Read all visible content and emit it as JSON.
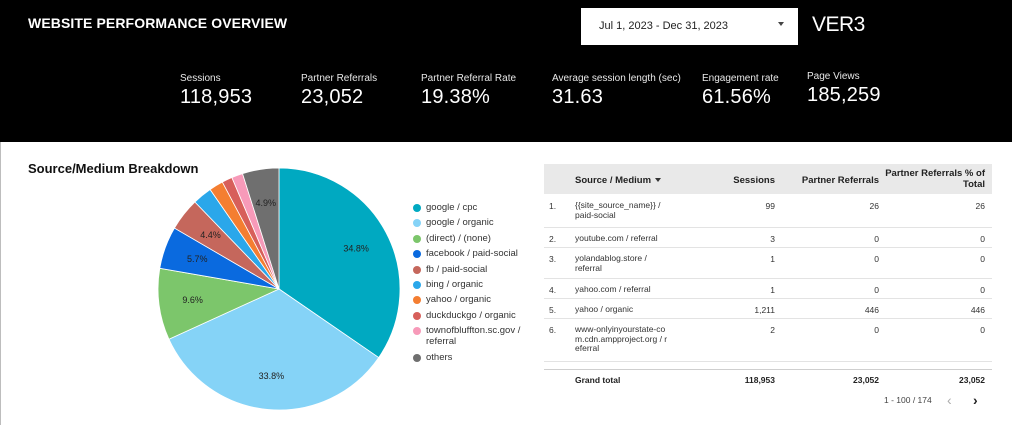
{
  "header": {
    "title": "WEBSITE PERFORMANCE OVERVIEW",
    "date_range": "Jul 1, 2023 - Dec 31, 2023",
    "logo": "VER3"
  },
  "kpis": [
    {
      "label": "Sessions",
      "value": "118,953"
    },
    {
      "label": "Partner Referrals",
      "value": "23,052"
    },
    {
      "label": "Partner Referral Rate",
      "value": "19.38%"
    },
    {
      "label": "Average session length (sec)",
      "value": "31.63"
    },
    {
      "label": "Engagement rate",
      "value": "61.56%"
    },
    {
      "label": "Page Views",
      "value": "185,259"
    }
  ],
  "breakdown": {
    "title": "Source/Medium Breakdown"
  },
  "chart_data": {
    "type": "pie",
    "title": "Source/Medium Breakdown",
    "slices": [
      {
        "name": "google / cpc",
        "value": 34.8,
        "label": "34.8%",
        "color": "#00a9c1"
      },
      {
        "name": "google / organic",
        "value": 33.8,
        "label": "33.8%",
        "color": "#85d3f7"
      },
      {
        "name": "(direct) / (none)",
        "value": 9.6,
        "label": "9.6%",
        "color": "#7cc66b"
      },
      {
        "name": "facebook / paid-social",
        "value": 5.7,
        "label": "5.7%",
        "color": "#0a6adf"
      },
      {
        "name": "fb / paid-social",
        "value": 4.4,
        "label": "4.4%",
        "color": "#c5675c"
      },
      {
        "name": "bing / organic",
        "value": 2.6,
        "label": "",
        "color": "#2aa7ea"
      },
      {
        "name": "yahoo / organic",
        "value": 1.9,
        "label": "",
        "color": "#f47e31"
      },
      {
        "name": "duckduckgo / organic",
        "value": 1.4,
        "label": "",
        "color": "#d75f5a"
      },
      {
        "name": "townofbluffton.sc.gov / referral",
        "value": 1.5,
        "label": "",
        "color": "#f79ab9"
      },
      {
        "name": "others",
        "value": 4.9,
        "label": "4.9%",
        "color": "#6f6f6f"
      }
    ],
    "legend_position": "right"
  },
  "table": {
    "columns": [
      "Source / Medium",
      "Sessions",
      "Partner Referrals",
      "Partner Referrals % of Total"
    ],
    "rows": [
      {
        "idx": "1.",
        "source": "{{site_source_name}} / paid-social",
        "sessions": "99",
        "referrals": "26",
        "pct": "26"
      },
      {
        "idx": "2.",
        "source": "youtube.com / referral",
        "sessions": "3",
        "referrals": "0",
        "pct": "0"
      },
      {
        "idx": "3.",
        "source": "yolandablog.store / referral",
        "sessions": "1",
        "referrals": "0",
        "pct": "0"
      },
      {
        "idx": "4.",
        "source": "yahoo.com / referral",
        "sessions": "1",
        "referrals": "0",
        "pct": "0"
      },
      {
        "idx": "5.",
        "source": "yahoo / organic",
        "sessions": "1,211",
        "referrals": "446",
        "pct": "446"
      },
      {
        "idx": "6.",
        "source": "www-onlyinyourstate-com.cdn.ampproject.org / referral",
        "sessions": "2",
        "referrals": "0",
        "pct": "0"
      }
    ],
    "grand_total": {
      "label": "Grand total",
      "sessions": "118,953",
      "referrals": "23,052",
      "pct": "23,052"
    },
    "pagination": {
      "range": "1 - 100 / 174",
      "prev": "‹",
      "next": "›"
    }
  }
}
